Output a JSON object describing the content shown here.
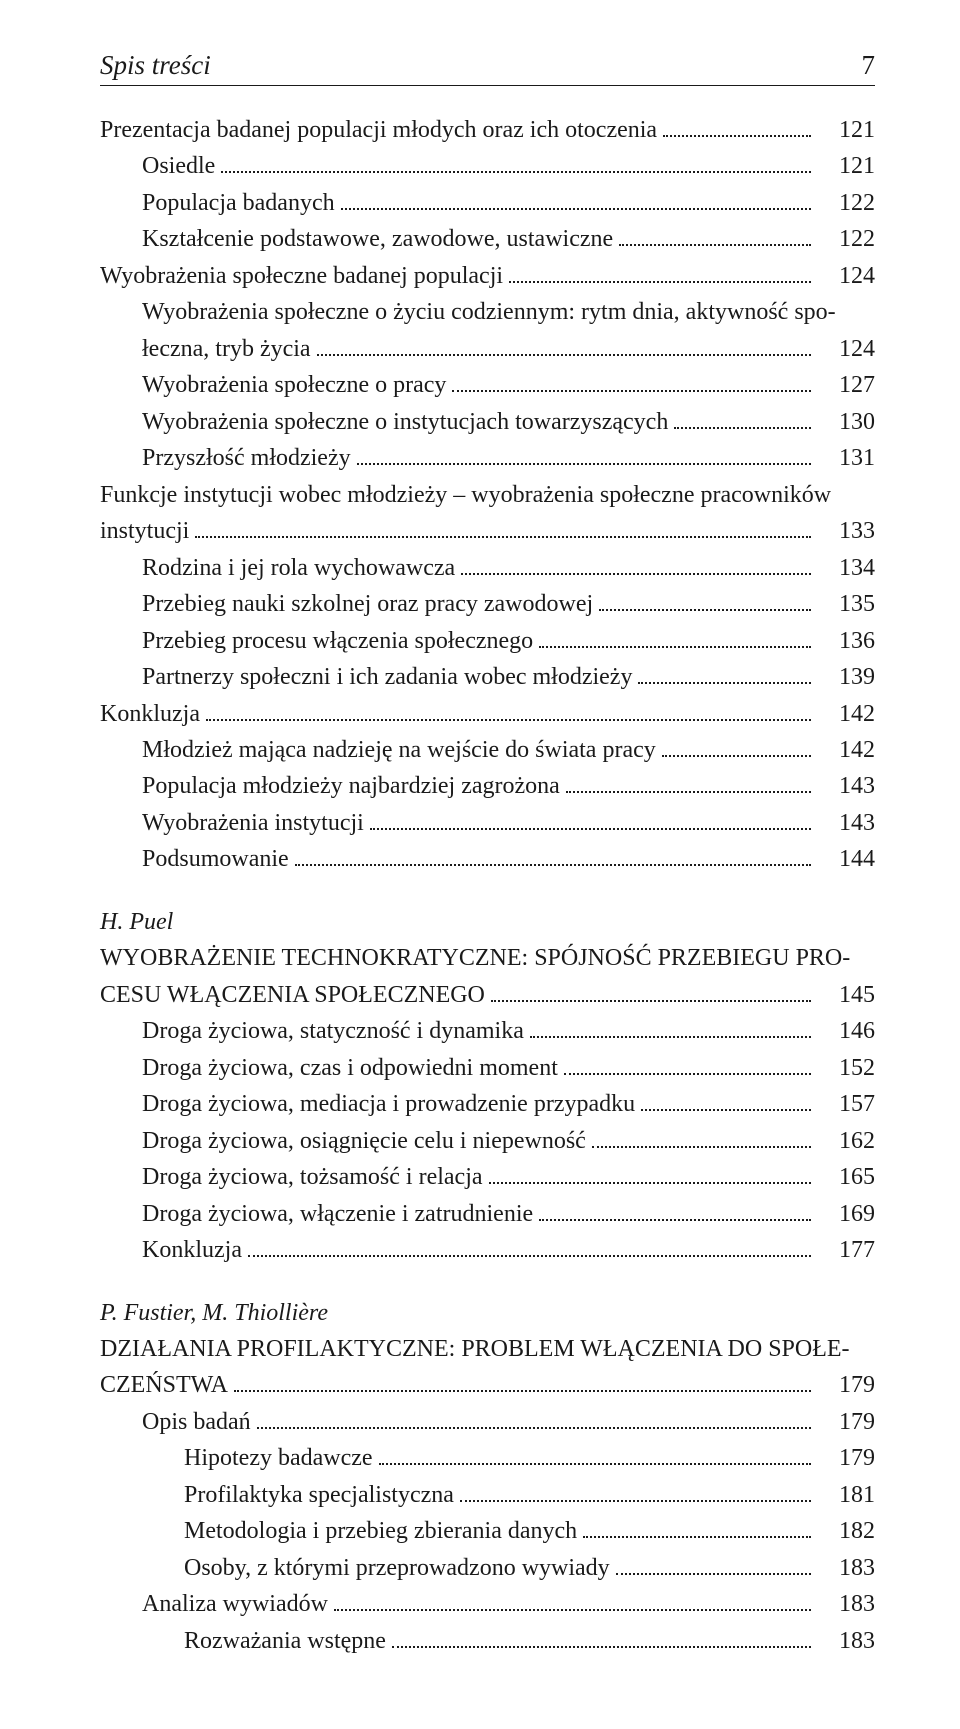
{
  "header": {
    "title": "Spis treści",
    "page": "7"
  },
  "entries": [
    {
      "type": "entry",
      "indent": 0,
      "text": "Prezentacja badanej populacji młodych oraz ich otoczenia",
      "page": "121"
    },
    {
      "type": "entry",
      "indent": 1,
      "text": "Osiedle",
      "page": "121"
    },
    {
      "type": "entry",
      "indent": 1,
      "text": "Populacja badanych",
      "page": "122"
    },
    {
      "type": "entry",
      "indent": 1,
      "text": "Kształcenie podstawowe, zawodowe, ustawiczne",
      "page": "122"
    },
    {
      "type": "entry",
      "indent": 0,
      "text": "Wyobrażenia społeczne badanej populacji",
      "page": "124"
    },
    {
      "type": "line",
      "indent": 1,
      "text": "Wyobrażenia społeczne o życiu codziennym: rytm dnia, aktywność spo-"
    },
    {
      "type": "entry",
      "indent": 1,
      "text": "łeczna, tryb życia",
      "page": "124"
    },
    {
      "type": "entry",
      "indent": 1,
      "text": "Wyobrażenia społeczne o pracy",
      "page": "127"
    },
    {
      "type": "entry",
      "indent": 1,
      "text": "Wyobrażenia społeczne o instytucjach towarzyszących",
      "page": "130"
    },
    {
      "type": "entry",
      "indent": 1,
      "text": "Przyszłość młodzieży",
      "page": "131"
    },
    {
      "type": "line",
      "indent": 0,
      "text": "Funkcje instytucji wobec młodzieży – wyobrażenia społeczne pracowników"
    },
    {
      "type": "entry",
      "indent": 0,
      "text": "instytucji",
      "page": "133"
    },
    {
      "type": "entry",
      "indent": 1,
      "text": "Rodzina i jej rola wychowawcza",
      "page": "134"
    },
    {
      "type": "entry",
      "indent": 1,
      "text": "Przebieg nauki szkolnej oraz pracy zawodowej",
      "page": "135"
    },
    {
      "type": "entry",
      "indent": 1,
      "text": "Przebieg procesu włączenia społecznego",
      "page": "136"
    },
    {
      "type": "entry",
      "indent": 1,
      "text": "Partnerzy społeczni i ich zadania wobec młodzieży",
      "page": "139"
    },
    {
      "type": "entry",
      "indent": 0,
      "text": "Konkluzja",
      "page": "142"
    },
    {
      "type": "entry",
      "indent": 1,
      "text": "Młodzież mająca nadzieję na wejście do świata pracy",
      "page": "142"
    },
    {
      "type": "entry",
      "indent": 1,
      "text": "Populacja młodzieży najbardziej zagrożona",
      "page": "143"
    },
    {
      "type": "entry",
      "indent": 1,
      "text": "Wyobrażenia instytucji",
      "page": "143"
    },
    {
      "type": "entry",
      "indent": 1,
      "text": "Podsumowanie",
      "page": "144"
    },
    {
      "type": "author",
      "text": "H. Puel"
    },
    {
      "type": "line",
      "indent": 0,
      "text": "WYOBRAŻENIE TECHNOKRATYCZNE: SPÓJNOŚĆ PRZEBIEGU PRO-"
    },
    {
      "type": "entry",
      "indent": 0,
      "text": "CESU WŁĄCZENIA SPOŁECZNEGO",
      "page": "145"
    },
    {
      "type": "entry",
      "indent": 1,
      "text": "Droga życiowa, statyczność i dynamika",
      "page": "146"
    },
    {
      "type": "entry",
      "indent": 1,
      "text": "Droga życiowa, czas i odpowiedni moment",
      "page": "152"
    },
    {
      "type": "entry",
      "indent": 1,
      "text": "Droga życiowa, mediacja i prowadzenie przypadku",
      "page": "157"
    },
    {
      "type": "entry",
      "indent": 1,
      "text": "Droga życiowa, osiągnięcie celu i niepewność",
      "page": "162"
    },
    {
      "type": "entry",
      "indent": 1,
      "text": "Droga życiowa, tożsamość i relacja",
      "page": "165"
    },
    {
      "type": "entry",
      "indent": 1,
      "text": "Droga życiowa, włączenie i zatrudnienie",
      "page": "169"
    },
    {
      "type": "entry",
      "indent": 1,
      "text": "Konkluzja",
      "page": "177"
    },
    {
      "type": "author",
      "text": "P. Fustier, M. Thiollière"
    },
    {
      "type": "line",
      "indent": 0,
      "text": "DZIAŁANIA PROFILAKTYCZNE: PROBLEM WŁĄCZENIA DO SPOŁE-"
    },
    {
      "type": "entry",
      "indent": 0,
      "text": "CZEŃSTWA",
      "page": "179"
    },
    {
      "type": "entry",
      "indent": 1,
      "text": "Opis badań",
      "page": "179"
    },
    {
      "type": "entry",
      "indent": 2,
      "text": "Hipotezy badawcze",
      "page": "179"
    },
    {
      "type": "entry",
      "indent": 2,
      "text": "Profilaktyka specjalistyczna",
      "page": "181"
    },
    {
      "type": "entry",
      "indent": 2,
      "text": "Metodologia i przebieg zbierania danych",
      "page": "182"
    },
    {
      "type": "entry",
      "indent": 2,
      "text": "Osoby, z którymi przeprowadzono wywiady",
      "page": "183"
    },
    {
      "type": "entry",
      "indent": 1,
      "text": "Analiza wywiadów",
      "page": "183"
    },
    {
      "type": "entry",
      "indent": 2,
      "text": "Rozważania wstępne",
      "page": "183"
    }
  ]
}
